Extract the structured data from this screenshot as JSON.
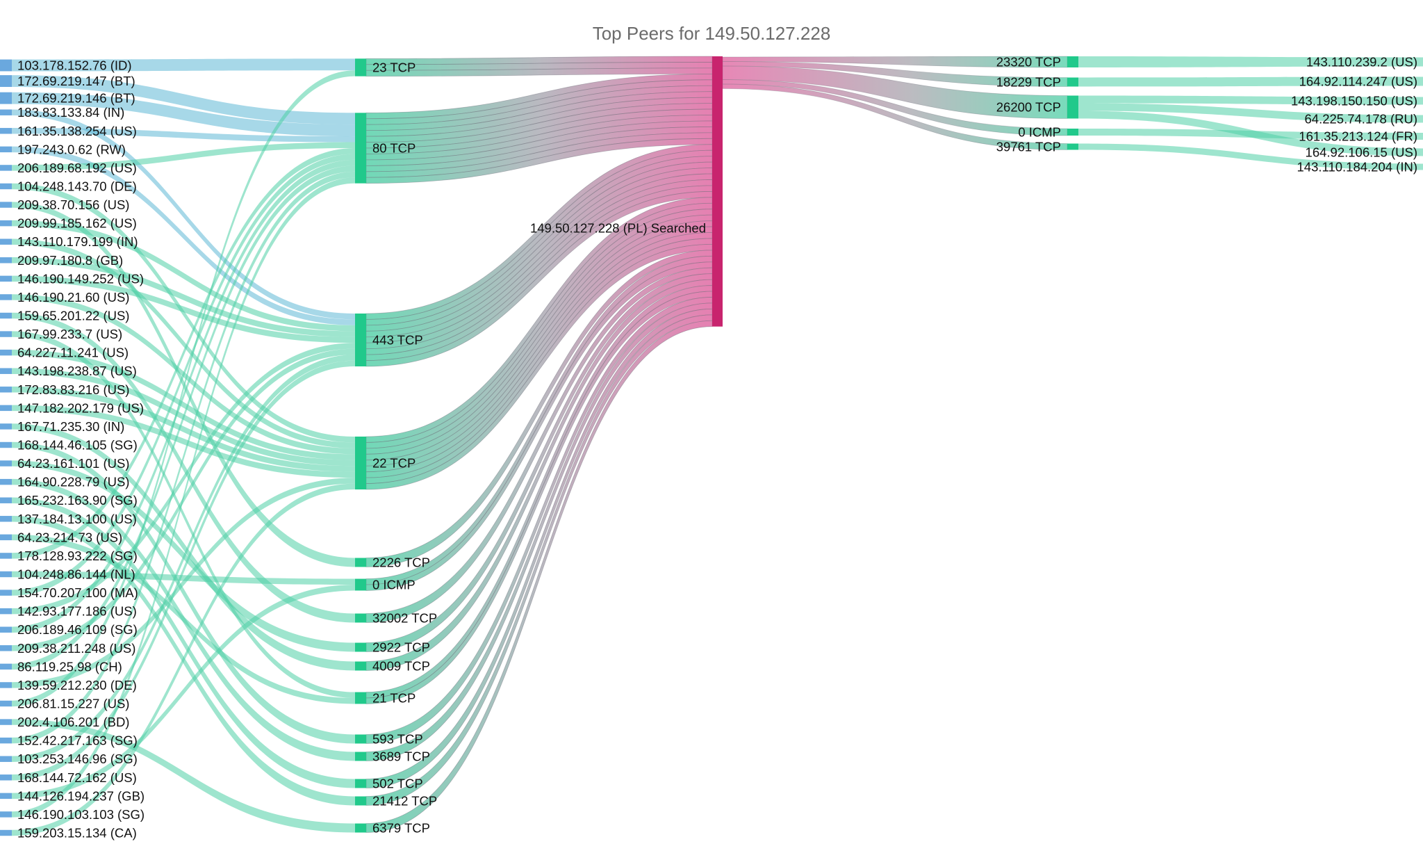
{
  "chart_data": {
    "type": "sankey",
    "title": "Top Peers for 149.50.127.228",
    "center": {
      "label": "149.50.127.228 (PL) Searched",
      "color": "#c8246e"
    },
    "colors": {
      "source_node": "#6aa8de",
      "port_node": "#21c98b",
      "dest_node": "#21c98b",
      "flow_green": "#4fd0a6",
      "flow_blue": "#5fb8d6",
      "flow_pink": "#e0629f"
    },
    "sources": [
      "103.178.152.76 (ID)",
      "172.69.219.147 (BT)",
      "172.69.219.146 (BT)",
      "183.83.133.84 (IN)",
      "161.35.138.254 (US)",
      "197.243.0.62 (RW)",
      "206.189.68.192 (US)",
      "104.248.143.70 (DE)",
      "209.38.70.156 (US)",
      "209.99.185.162 (US)",
      "143.110.179.199 (IN)",
      "209.97.180.8 (GB)",
      "146.190.149.252 (US)",
      "146.190.21.60 (US)",
      "159.65.201.22 (US)",
      "167.99.233.7 (US)",
      "64.227.11.241 (US)",
      "143.198.238.87 (US)",
      "172.83.83.216 (US)",
      "147.182.202.179 (US)",
      "167.71.235.30 (IN)",
      "168.144.46.105 (SG)",
      "64.23.161.101 (US)",
      "164.90.228.79 (US)",
      "165.232.163.90 (SG)",
      "137.184.13.100 (US)",
      "64.23.214.73 (US)",
      "178.128.93.222 (SG)",
      "104.248.86.144 (NL)",
      "154.70.207.100 (MA)",
      "142.93.177.186 (US)",
      "206.189.46.109 (SG)",
      "209.38.211.248 (US)",
      "86.119.25.98 (CH)",
      "139.59.212.230 (DE)",
      "206.81.15.227 (US)",
      "202.4.106.201 (BD)",
      "152.42.217.163 (SG)",
      "103.253.146.96 (SG)",
      "168.144.72.162 (US)",
      "144.126.194.237 (GB)",
      "146.190.103.103 (SG)",
      "159.203.15.134 (CA)"
    ],
    "inbound_ports": [
      "23 TCP",
      "80 TCP",
      "443 TCP",
      "22 TCP",
      "2226 TCP",
      "0 ICMP",
      "32002 TCP",
      "2922 TCP",
      "4009 TCP",
      "21 TCP",
      "593 TCP",
      "3689 TCP",
      "502 TCP",
      "21412 TCP",
      "6379 TCP"
    ],
    "outbound_ports": [
      "23320 TCP",
      "18229 TCP",
      "26200 TCP",
      "0 ICMP",
      "39761 TCP"
    ],
    "destinations": [
      "143.110.239.2 (US)",
      "164.92.114.247 (US)",
      "143.198.150.150 (US)",
      "64.225.74.178 (RU)",
      "161.35.213.124 (FR)",
      "164.92.106.15 (US)",
      "143.110.184.204 (IN)"
    ],
    "flows_in": [
      [
        "103.178.152.76 (ID)",
        "23 TCP",
        2
      ],
      [
        "172.69.219.147 (BT)",
        "80 TCP",
        2
      ],
      [
        "172.69.219.146 (BT)",
        "80 TCP",
        2
      ],
      [
        "183.83.133.84 (IN)",
        "443 TCP",
        1
      ],
      [
        "161.35.138.254 (US)",
        "80 TCP",
        1
      ],
      [
        "197.243.0.62 (RW)",
        "443 TCP",
        1
      ],
      [
        "206.189.68.192 (US)",
        "80 TCP",
        1
      ],
      [
        "104.248.143.70 (DE)",
        "22 TCP",
        1
      ],
      [
        "209.38.70.156 (US)",
        "2226 TCP",
        1
      ],
      [
        "209.99.185.162 (US)",
        "443 TCP",
        1
      ],
      [
        "143.110.179.199 (IN)",
        "22 TCP",
        1
      ],
      [
        "209.97.180.8 (GB)",
        "443 TCP",
        1
      ],
      [
        "146.190.149.252 (US)",
        "443 TCP",
        1
      ],
      [
        "146.190.21.60 (US)",
        "22 TCP",
        1
      ],
      [
        "159.65.201.22 (US)",
        "32002 TCP",
        1
      ],
      [
        "167.99.233.7 (US)",
        "21 TCP",
        1
      ],
      [
        "64.227.11.241 (US)",
        "22 TCP",
        1
      ],
      [
        "143.198.238.87 (US)",
        "22 TCP",
        1
      ],
      [
        "172.83.83.216 (US)",
        "22 TCP",
        1
      ],
      [
        "147.182.202.179 (US)",
        "22 TCP",
        1
      ],
      [
        "167.71.235.30 (IN)",
        "4009 TCP",
        1
      ],
      [
        "168.144.46.105 (SG)",
        "593 TCP",
        1
      ],
      [
        "64.23.161.101 (US)",
        "2922 TCP",
        1
      ],
      [
        "164.90.228.79 (US)",
        "3689 TCP",
        1
      ],
      [
        "165.232.163.90 (SG)",
        "502 TCP",
        1
      ],
      [
        "137.184.13.100 (US)",
        "21412 TCP",
        1
      ],
      [
        "64.23.214.73 (US)",
        "21 TCP",
        1
      ],
      [
        "178.128.93.222 (SG)",
        "80 TCP",
        1
      ],
      [
        "104.248.86.144 (NL)",
        "0 ICMP",
        1
      ],
      [
        "154.70.207.100 (MA)",
        "80 TCP",
        1
      ],
      [
        "142.93.177.186 (US)",
        "443 TCP",
        1
      ],
      [
        "206.189.46.109 (SG)",
        "80 TCP",
        1
      ],
      [
        "209.38.211.248 (US)",
        "443 TCP",
        1
      ],
      [
        "86.119.25.98 (CH)",
        "80 TCP",
        1
      ],
      [
        "139.59.212.230 (DE)",
        "22 TCP",
        1
      ],
      [
        "206.81.15.227 (US)",
        "23 TCP",
        1
      ],
      [
        "202.4.106.201 (BD)",
        "6379 TCP",
        1
      ],
      [
        "152.42.217.163 (SG)",
        "80 TCP",
        1
      ],
      [
        "103.253.146.96 (SG)",
        "443 TCP",
        1
      ],
      [
        "168.144.72.162 (US)",
        "443 TCP",
        1
      ],
      [
        "144.126.194.237 (GB)",
        "0 ICMP",
        1
      ],
      [
        "146.190.103.103 (SG)",
        "80 TCP",
        1
      ],
      [
        "159.203.15.134 (CA)",
        "22 TCP",
        1
      ]
    ],
    "flows_out": [
      [
        "23320 TCP",
        "143.110.239.2 (US)",
        1
      ],
      [
        "18229 TCP",
        "164.92.114.247 (US)",
        1
      ],
      [
        "26200 TCP",
        "143.198.150.150 (US)",
        1
      ],
      [
        "26200 TCP",
        "64.225.74.178 (RU)",
        1
      ],
      [
        "26200 TCP",
        "164.92.106.15 (US)",
        1
      ],
      [
        "0 ICMP",
        "161.35.213.124 (FR)",
        1
      ],
      [
        "39761 TCP",
        "143.110.184.204 (IN)",
        1
      ]
    ]
  }
}
